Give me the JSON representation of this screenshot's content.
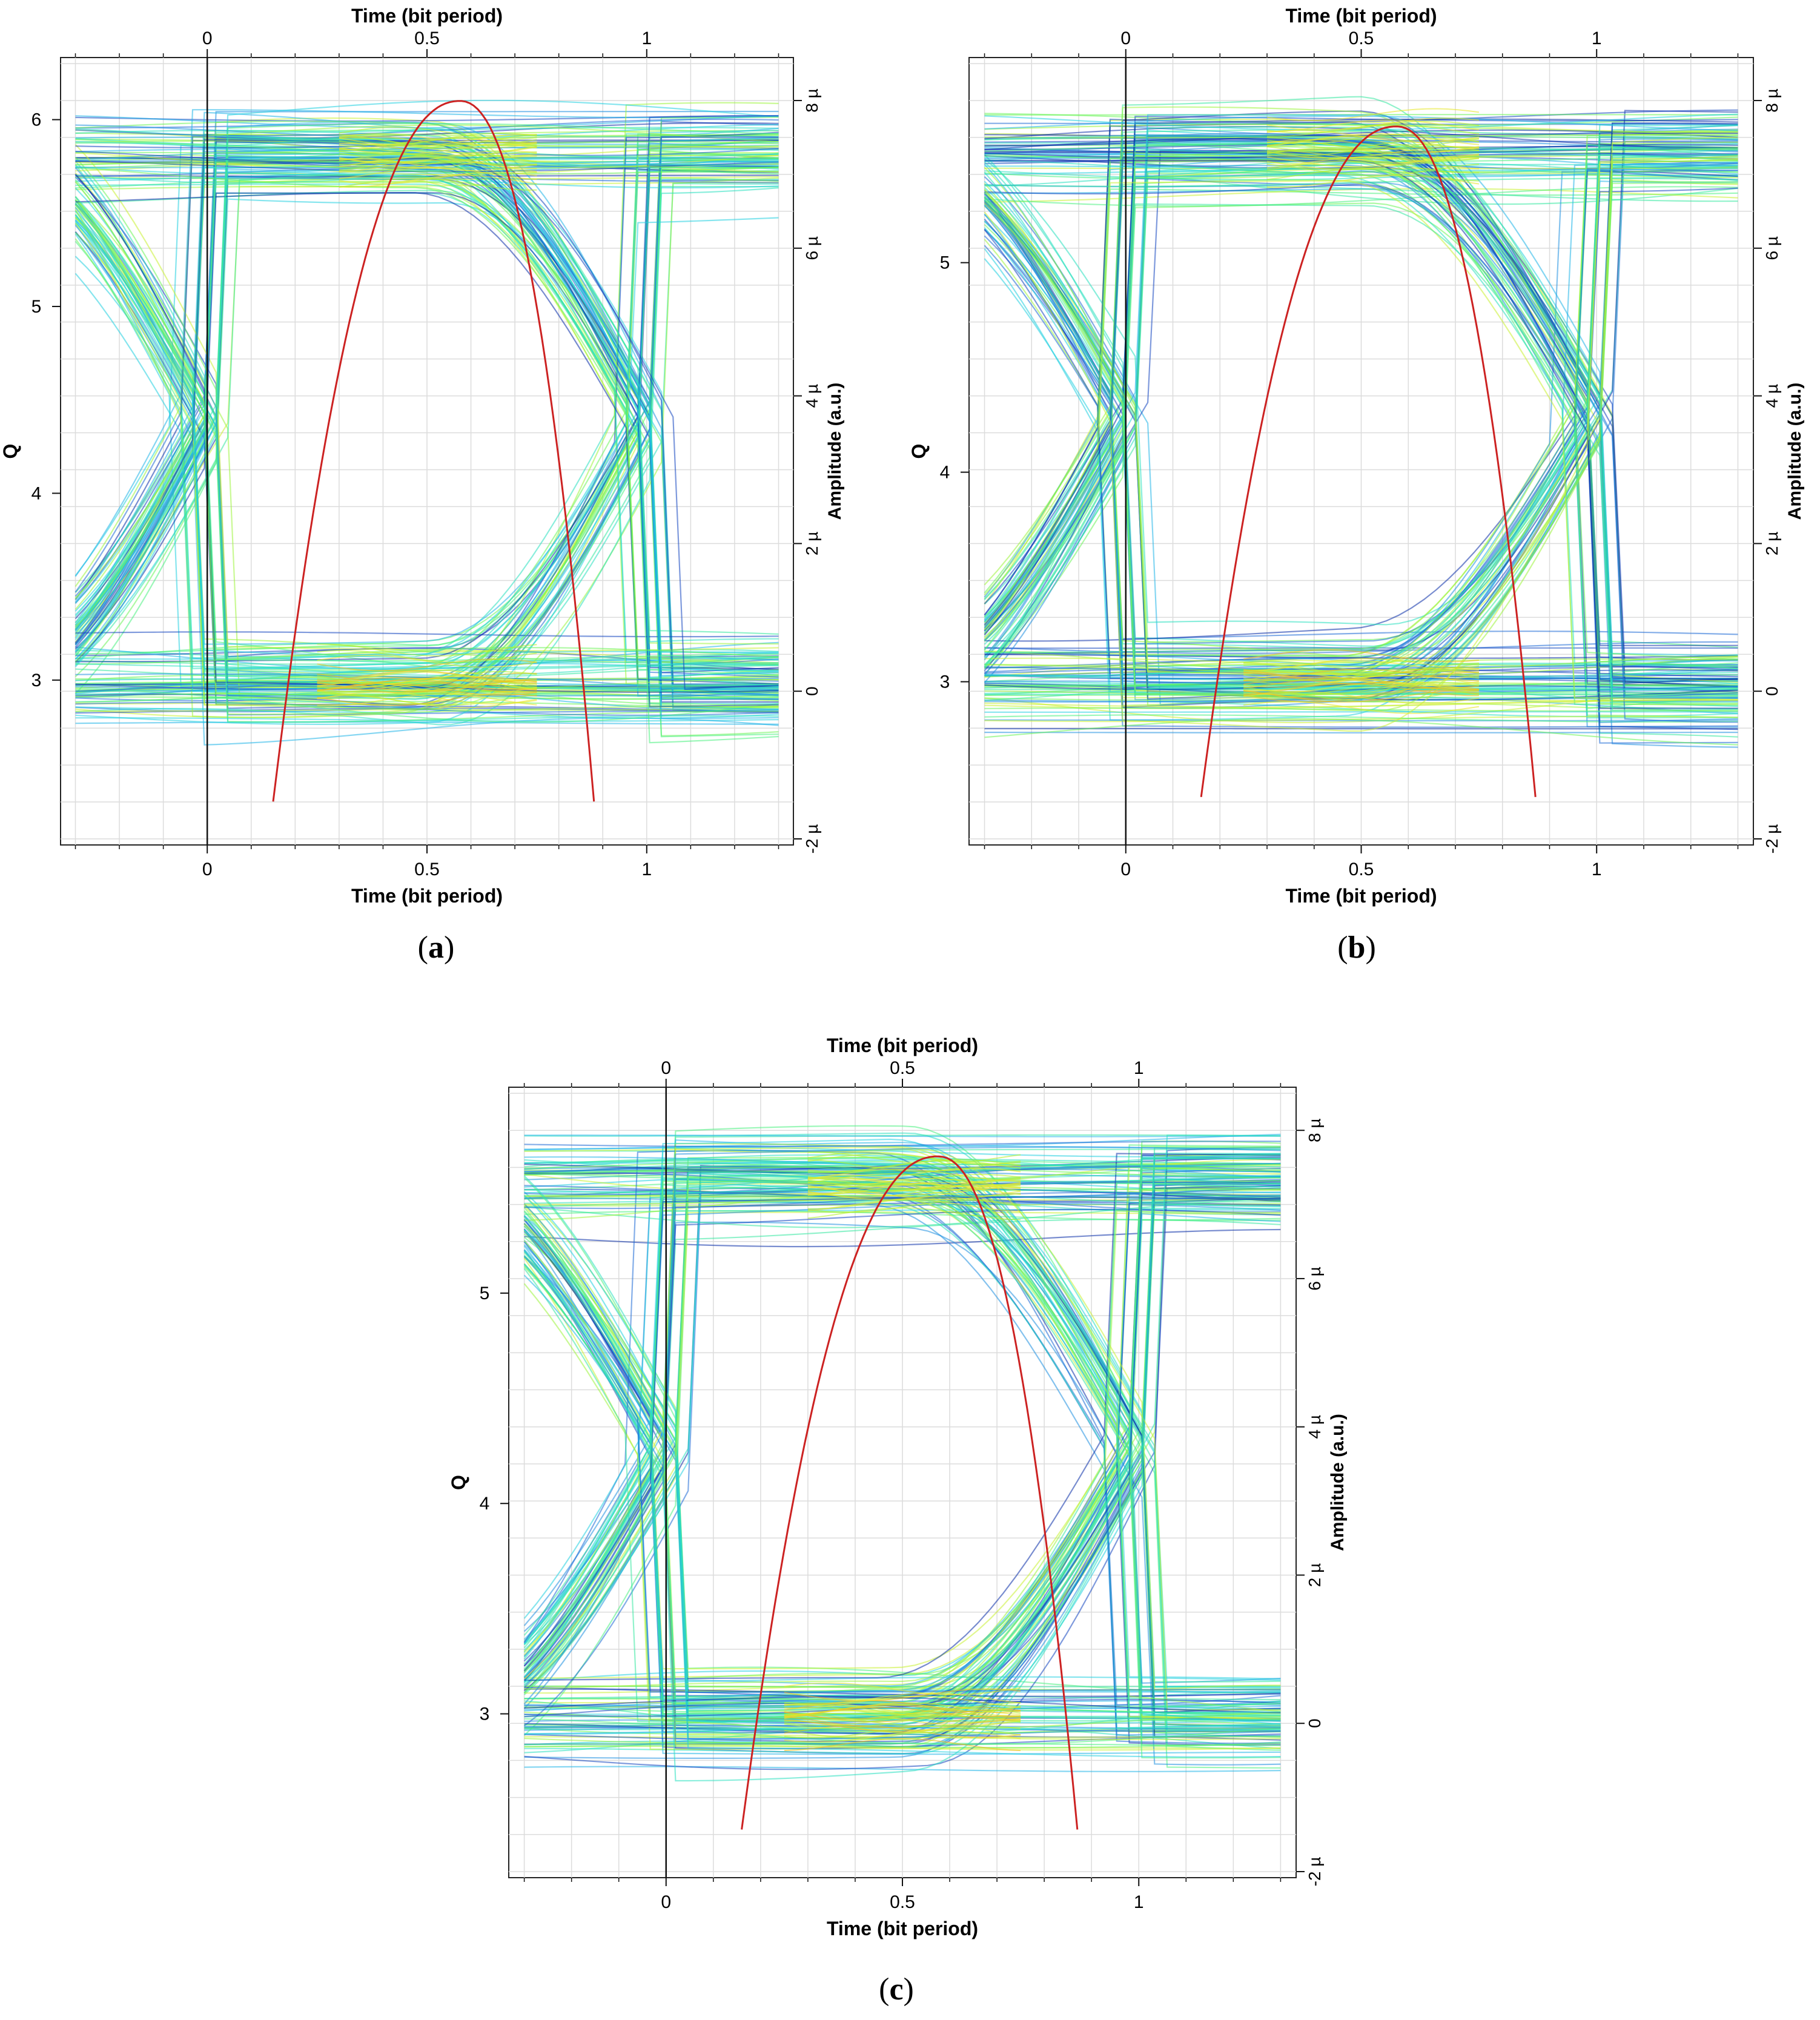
{
  "figure": {
    "panels": [
      {
        "caption_letter": "a"
      },
      {
        "caption_letter": "b"
      },
      {
        "caption_letter": "c"
      }
    ]
  },
  "chart_data": [
    {
      "type": "line",
      "panel": "a",
      "x_top_label": "Time (bit period)",
      "x_bottom_label": "Time (bit period)",
      "y_left_label": "Q",
      "y_right_label": "Amplitude (a.u.)",
      "x_ticks": [
        "0",
        "0.5",
        "1"
      ],
      "x_tick_values": [
        0,
        0.5,
        1
      ],
      "y_left_ticks": [
        "3",
        "4",
        "5",
        "6"
      ],
      "y_left_tick_values": [
        3,
        4,
        5,
        6
      ],
      "y_right_ticks": [
        "-2 µ",
        "0",
        "2 µ",
        "4 µ",
        "6 µ",
        "8 µ"
      ],
      "y_right_tick_values": [
        -2,
        0,
        2,
        4,
        6,
        8
      ],
      "xlim": [
        -0.32,
        1.32
      ],
      "ylim_left": [
        2.15,
        6.3
      ],
      "ylim_right": [
        -2,
        8.5
      ],
      "eye_levels_amplitude": {
        "low": 0.1,
        "high": 7.3,
        "eye_bottom": 1.4,
        "eye_top": 5.2
      },
      "crossing_times": [
        0,
        1
      ],
      "q_factor_curve": {
        "color": "#cc2222",
        "x_range": [
          0.15,
          0.88
        ],
        "peak_x": 0.575,
        "peak_q": 6.1,
        "edge_q": 2.35
      },
      "grid": true
    },
    {
      "type": "line",
      "panel": "b",
      "x_top_label": "Time (bit period)",
      "x_bottom_label": "Time (bit period)",
      "y_left_label": "Q",
      "y_right_label": "Amplitude (a.u.)",
      "x_ticks": [
        "0",
        "0.5",
        "1"
      ],
      "x_tick_values": [
        0,
        0.5,
        1
      ],
      "y_left_ticks": [
        "3",
        "4",
        "5"
      ],
      "y_left_tick_values": [
        3,
        4,
        5
      ],
      "y_right_ticks": [
        "-2 µ",
        "0",
        "2 µ",
        "4 µ",
        "6 µ",
        "8 µ"
      ],
      "y_right_tick_values": [
        -2,
        0,
        2,
        4,
        6,
        8
      ],
      "xlim": [
        -0.32,
        1.32
      ],
      "ylim_left": [
        2.25,
        5.95
      ],
      "ylim_right": [
        -2,
        8.5
      ],
      "eye_levels_amplitude": {
        "low": 0.1,
        "high": 7.3,
        "eye_bottom": 1.5,
        "eye_top": 5.0
      },
      "crossing_times": [
        0,
        1
      ],
      "q_factor_curve": {
        "color": "#cc2222",
        "x_range": [
          0.16,
          0.87
        ],
        "peak_x": 0.575,
        "peak_q": 5.65,
        "edge_q": 2.45
      },
      "grid": true
    },
    {
      "type": "line",
      "panel": "c",
      "x_top_label": "Time (bit period)",
      "x_bottom_label": "Time (bit period)",
      "y_left_label": "Q",
      "y_right_label": "Amplitude (a.u.)",
      "x_ticks": [
        "0",
        "0.5",
        "1"
      ],
      "x_tick_values": [
        0,
        0.5,
        1
      ],
      "y_left_ticks": [
        "3",
        "4",
        "5"
      ],
      "y_left_tick_values": [
        3,
        4,
        5
      ],
      "y_right_ticks": [
        "-2 µ",
        "0",
        "2 µ",
        "4 µ",
        "6 µ",
        "8 µ"
      ],
      "y_right_tick_values": [
        -2,
        0,
        2,
        4,
        6,
        8
      ],
      "xlim": [
        -0.32,
        1.32
      ],
      "ylim_left": [
        2.25,
        5.95
      ],
      "ylim_right": [
        -2,
        8.5
      ],
      "eye_levels_amplitude": {
        "low": 0.1,
        "high": 7.3,
        "eye_bottom": 1.5,
        "eye_top": 5.0
      },
      "crossing_times": [
        0,
        1
      ],
      "q_factor_curve": {
        "color": "#cc2222",
        "x_range": [
          0.16,
          0.87
        ],
        "peak_x": 0.575,
        "peak_q": 5.65,
        "edge_q": 2.45
      },
      "grid": true
    }
  ]
}
